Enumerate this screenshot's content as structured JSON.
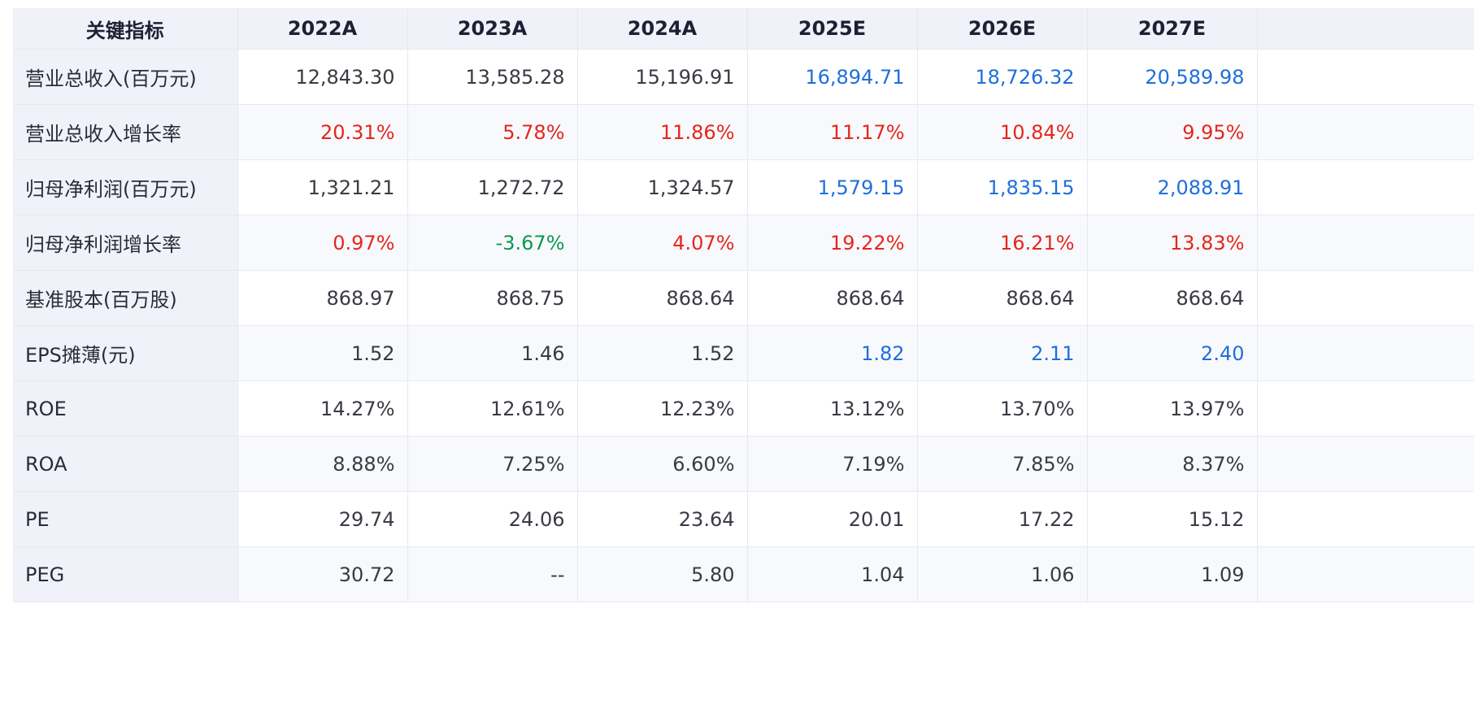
{
  "colors": {
    "estimate": "#1e6fdc",
    "up": "#e5261b",
    "down": "#0a9a4c",
    "header_bg": "#f1f2f9"
  },
  "table": {
    "headers": [
      "关键指标",
      "2022A",
      "2023A",
      "2024A",
      "2025E",
      "2026E",
      "2027E"
    ],
    "rows": [
      {
        "label": "营业总收入(百万元)",
        "values": [
          "12,843.30",
          "13,585.28",
          "15,196.91",
          "16,894.71",
          "18,726.32",
          "20,589.98"
        ],
        "styles": [
          "",
          "",
          "",
          "blue",
          "blue",
          "blue"
        ]
      },
      {
        "label": "营业总收入增长率",
        "values": [
          "20.31%",
          "5.78%",
          "11.86%",
          "11.17%",
          "10.84%",
          "9.95%"
        ],
        "styles": [
          "red",
          "red",
          "red",
          "red",
          "red",
          "red"
        ]
      },
      {
        "label": "归母净利润(百万元)",
        "values": [
          "1,321.21",
          "1,272.72",
          "1,324.57",
          "1,579.15",
          "1,835.15",
          "2,088.91"
        ],
        "styles": [
          "",
          "",
          "",
          "blue",
          "blue",
          "blue"
        ]
      },
      {
        "label": "归母净利润增长率",
        "values": [
          "0.97%",
          "-3.67%",
          "4.07%",
          "19.22%",
          "16.21%",
          "13.83%"
        ],
        "styles": [
          "red",
          "green",
          "red",
          "red",
          "red",
          "red"
        ]
      },
      {
        "label": "基准股本(百万股)",
        "values": [
          "868.97",
          "868.75",
          "868.64",
          "868.64",
          "868.64",
          "868.64"
        ],
        "styles": [
          "",
          "",
          "",
          "",
          "",
          ""
        ]
      },
      {
        "label": "EPS摊薄(元)",
        "values": [
          "1.52",
          "1.46",
          "1.52",
          "1.82",
          "2.11",
          "2.40"
        ],
        "styles": [
          "",
          "",
          "",
          "blue",
          "blue",
          "blue"
        ]
      },
      {
        "label": "ROE",
        "values": [
          "14.27%",
          "12.61%",
          "12.23%",
          "13.12%",
          "13.70%",
          "13.97%"
        ],
        "styles": [
          "",
          "",
          "",
          "",
          "",
          ""
        ]
      },
      {
        "label": "ROA",
        "values": [
          "8.88%",
          "7.25%",
          "6.60%",
          "7.19%",
          "7.85%",
          "8.37%"
        ],
        "styles": [
          "",
          "",
          "",
          "",
          "",
          ""
        ]
      },
      {
        "label": "PE",
        "values": [
          "29.74",
          "24.06",
          "23.64",
          "20.01",
          "17.22",
          "15.12"
        ],
        "styles": [
          "",
          "",
          "",
          "",
          "",
          ""
        ]
      },
      {
        "label": "PEG",
        "values": [
          "30.72",
          "--",
          "5.80",
          "1.04",
          "1.06",
          "1.09"
        ],
        "styles": [
          "",
          "",
          "",
          "",
          "",
          ""
        ]
      }
    ]
  }
}
